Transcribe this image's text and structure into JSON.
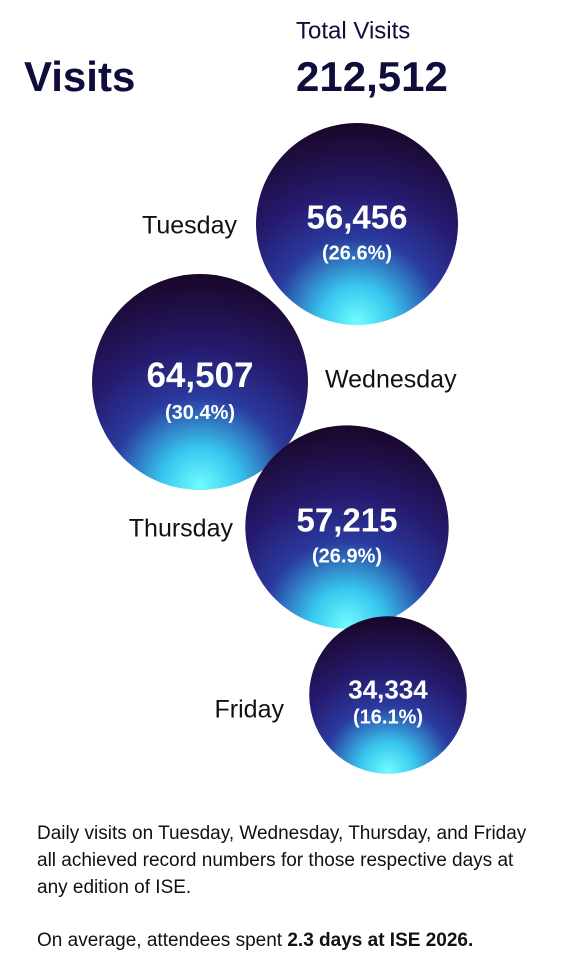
{
  "chart_data": {
    "type": "bubble",
    "title": "Visits",
    "total_title": "Total Visits",
    "total": {
      "value": 212512,
      "label": "212,512"
    },
    "categories": [
      "Tuesday",
      "Wednesday",
      "Thursday",
      "Friday"
    ],
    "values": [
      56456,
      64507,
      57215,
      34334
    ],
    "value_labels": [
      "56,456",
      "64,507",
      "57,215",
      "34,334"
    ],
    "percents": [
      26.6,
      30.4,
      26.9,
      16.1
    ],
    "percent_labels": [
      "(26.6%)",
      "(30.4%)",
      "(26.9%)",
      "(16.1%)"
    ]
  },
  "notes": [
    "Daily visits on Tuesday, Wednesday, Thursday, and Friday all achieved record numbers for those respective days at any edition of ISE.",
    {
      "text": "On average, attendees spent ",
      "emphasis": "2.3 days at ISE 2026."
    }
  ]
}
